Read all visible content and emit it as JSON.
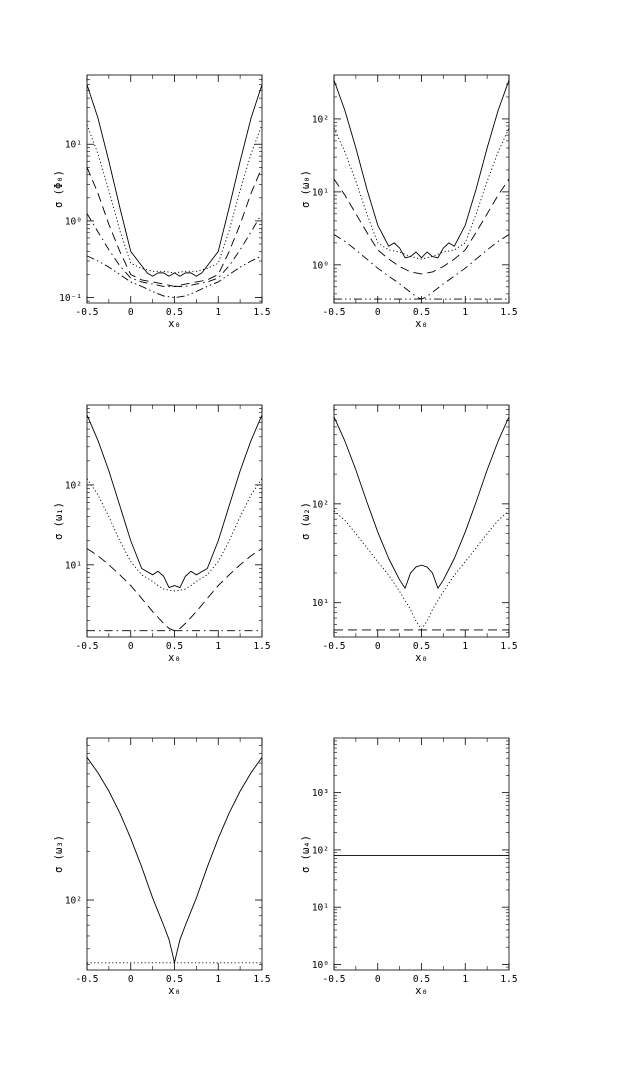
{
  "chart_data": [
    {
      "type": "line",
      "ylabel": "σ (Φ₀)",
      "xlabel": "x₀",
      "xlim": [
        -0.5,
        1.5
      ],
      "ylog": true,
      "ylim": [
        0.085,
        80
      ],
      "xticks": [
        "-0.5",
        "0",
        "0.5",
        "1",
        "1.5"
      ],
      "yticks": [
        {
          "value": 0.1,
          "label": "10⁻¹"
        },
        {
          "value": 1,
          "label": "10⁰"
        },
        {
          "value": 10,
          "label": "10¹"
        }
      ],
      "series": [
        {
          "style": "solid",
          "x": [
            -0.5,
            -0.375,
            -0.25,
            -0.125,
            0,
            0.125,
            0.1875,
            0.25,
            0.3125,
            0.375,
            0.4375,
            0.5,
            0.5625,
            0.625,
            0.6875,
            0.75,
            0.8125,
            0.875,
            1,
            1.125,
            1.25,
            1.375,
            1.5
          ],
          "y": [
            60,
            22,
            6,
            1.5,
            0.4,
            0.26,
            0.21,
            0.19,
            0.21,
            0.21,
            0.19,
            0.21,
            0.19,
            0.21,
            0.21,
            0.19,
            0.21,
            0.26,
            0.4,
            1.5,
            6,
            22,
            60
          ]
        },
        {
          "style": "dotted",
          "x": [
            -0.5,
            -0.375,
            -0.25,
            -0.125,
            0,
            0.125,
            0.25,
            0.375,
            0.5,
            0.625,
            0.75,
            0.875,
            1,
            1.125,
            1.25,
            1.375,
            1.5
          ],
          "y": [
            18,
            7.5,
            2.5,
            0.75,
            0.28,
            0.24,
            0.22,
            0.22,
            0.21,
            0.22,
            0.22,
            0.24,
            0.28,
            0.75,
            2.5,
            7.5,
            18
          ]
        },
        {
          "style": "dashed",
          "x": [
            -0.5,
            -0.375,
            -0.25,
            -0.125,
            0,
            0.125,
            0.25,
            0.375,
            0.5,
            0.625,
            0.75,
            0.875,
            1,
            1.125,
            1.25,
            1.375,
            1.5
          ],
          "y": [
            5,
            2.3,
            0.9,
            0.4,
            0.2,
            0.17,
            0.16,
            0.15,
            0.14,
            0.15,
            0.16,
            0.17,
            0.2,
            0.4,
            0.9,
            2.3,
            5
          ]
        },
        {
          "style": "dashdot",
          "x": [
            -0.5,
            -0.375,
            -0.25,
            -0.125,
            0,
            0.125,
            0.25,
            0.375,
            0.5,
            0.625,
            0.75,
            0.875,
            1,
            1.125,
            1.25,
            1.375,
            1.5
          ],
          "y": [
            1.25,
            0.72,
            0.42,
            0.26,
            0.18,
            0.16,
            0.15,
            0.14,
            0.14,
            0.14,
            0.15,
            0.16,
            0.18,
            0.26,
            0.42,
            0.72,
            1.25
          ]
        },
        {
          "style": "dashdotdot",
          "x": [
            -0.5,
            -0.375,
            -0.25,
            -0.125,
            0,
            0.125,
            0.25,
            0.375,
            0.5,
            0.625,
            0.75,
            0.875,
            1,
            1.125,
            1.25,
            1.375,
            1.5
          ],
          "y": [
            0.35,
            0.3,
            0.25,
            0.2,
            0.16,
            0.14,
            0.12,
            0.105,
            0.1,
            0.105,
            0.12,
            0.14,
            0.16,
            0.2,
            0.25,
            0.3,
            0.35
          ]
        }
      ]
    },
    {
      "type": "line",
      "ylabel": "σ (ω₀)",
      "xlabel": "x₀",
      "xlim": [
        -0.5,
        1.5
      ],
      "ylog": true,
      "ylim": [
        0.3,
        400
      ],
      "xticks": [
        "-0.5",
        "0",
        "0.5",
        "1",
        "1.5"
      ],
      "yticks": [
        {
          "value": 1,
          "label": "10⁰"
        },
        {
          "value": 10,
          "label": "10¹"
        },
        {
          "value": 100,
          "label": "10²"
        }
      ],
      "series": [
        {
          "style": "solid",
          "x": [
            -0.5,
            -0.375,
            -0.25,
            -0.125,
            0,
            0.125,
            0.1875,
            0.25,
            0.3125,
            0.375,
            0.4375,
            0.5,
            0.5625,
            0.625,
            0.6875,
            0.75,
            0.8125,
            0.875,
            1,
            1.125,
            1.25,
            1.375,
            1.5
          ],
          "y": [
            340,
            130,
            40,
            11,
            3.5,
            1.8,
            2.0,
            1.7,
            1.25,
            1.3,
            1.5,
            1.25,
            1.5,
            1.3,
            1.25,
            1.7,
            2.0,
            1.8,
            3.5,
            11,
            40,
            130,
            340
          ]
        },
        {
          "style": "dotted",
          "x": [
            -0.5,
            -0.375,
            -0.25,
            -0.125,
            0,
            0.125,
            0.25,
            0.375,
            0.5,
            0.625,
            0.75,
            0.875,
            1,
            1.125,
            1.25,
            1.375,
            1.5
          ],
          "y": [
            75,
            35,
            14,
            5,
            2.0,
            1.6,
            1.5,
            1.3,
            1.2,
            1.3,
            1.5,
            1.6,
            2.0,
            5,
            14,
            35,
            75
          ]
        },
        {
          "style": "dashed",
          "x": [
            -0.5,
            -0.375,
            -0.25,
            -0.125,
            0,
            0.125,
            0.25,
            0.375,
            0.5,
            0.625,
            0.75,
            0.875,
            1,
            1.125,
            1.25,
            1.375,
            1.5
          ],
          "y": [
            15,
            9,
            5,
            2.8,
            1.6,
            1.2,
            0.95,
            0.8,
            0.75,
            0.8,
            0.95,
            1.2,
            1.6,
            2.8,
            5,
            9,
            15
          ]
        },
        {
          "style": "dashdot",
          "x": [
            -0.5,
            -0.375,
            -0.25,
            -0.125,
            0,
            0.125,
            0.25,
            0.375,
            0.45,
            0.5,
            0.55,
            0.625,
            0.75,
            0.875,
            1,
            1.125,
            1.25,
            1.375,
            1.5
          ],
          "y": [
            2.6,
            2.1,
            1.6,
            1.2,
            0.9,
            0.7,
            0.55,
            0.42,
            0.36,
            0.34,
            0.36,
            0.42,
            0.55,
            0.7,
            0.9,
            1.2,
            1.6,
            2.1,
            2.6
          ]
        },
        {
          "style": "dashdotdot",
          "x": [
            -0.5,
            1.5
          ],
          "y": [
            0.34,
            0.34
          ]
        }
      ]
    },
    {
      "type": "line",
      "ylabel": "σ (ω₁)",
      "xlabel": "x₀",
      "xlim": [
        -0.5,
        1.5
      ],
      "ylog": true,
      "ylim": [
        1.25,
        1000
      ],
      "xticks": [
        "-0.5",
        "0",
        "0.5",
        "1",
        "1.5"
      ],
      "yticks": [
        {
          "value": 10,
          "label": "10¹"
        },
        {
          "value": 100,
          "label": "10²"
        }
      ],
      "series": [
        {
          "style": "solid",
          "x": [
            -0.5,
            -0.375,
            -0.25,
            -0.125,
            0,
            0.125,
            0.25,
            0.3125,
            0.375,
            0.4375,
            0.5,
            0.5625,
            0.625,
            0.6875,
            0.75,
            0.875,
            1,
            1.125,
            1.25,
            1.375,
            1.5
          ],
          "y": [
            750,
            360,
            150,
            55,
            20,
            9,
            7.5,
            8.3,
            7.2,
            5.2,
            5.5,
            5.2,
            7.2,
            8.3,
            7.5,
            9,
            20,
            55,
            150,
            360,
            750
          ]
        },
        {
          "style": "dotted",
          "x": [
            -0.5,
            -0.375,
            -0.25,
            -0.125,
            0,
            0.125,
            0.25,
            0.3125,
            0.375,
            0.4375,
            0.5,
            0.5625,
            0.625,
            0.6875,
            0.75,
            0.875,
            1,
            1.125,
            1.25,
            1.375,
            1.5
          ],
          "y": [
            120,
            75,
            40,
            20,
            11,
            7.5,
            6.2,
            5.5,
            5.0,
            4.8,
            4.7,
            4.8,
            5.0,
            5.5,
            6.2,
            7.5,
            11,
            20,
            40,
            75,
            120
          ]
        },
        {
          "style": "dashed",
          "x": [
            -0.5,
            -0.375,
            -0.25,
            -0.125,
            0,
            0.125,
            0.25,
            0.375,
            0.4375,
            0.5,
            0.5625,
            0.625,
            0.75,
            0.875,
            1,
            1.125,
            1.25,
            1.375,
            1.5
          ],
          "y": [
            16,
            13,
            10,
            7.5,
            5.5,
            3.8,
            2.6,
            1.85,
            1.6,
            1.5,
            1.6,
            1.85,
            2.6,
            3.8,
            5.5,
            7.5,
            10,
            13,
            16
          ]
        },
        {
          "style": "dashdot",
          "x": [
            -0.5,
            1.5
          ],
          "y": [
            1.5,
            1.5
          ]
        }
      ]
    },
    {
      "type": "line",
      "ylabel": "σ (ω₂)",
      "xlabel": "x₀",
      "xlim": [
        -0.5,
        1.5
      ],
      "ylog": true,
      "ylim": [
        4.5,
        1000
      ],
      "xticks": [
        "-0.5",
        "0",
        "0.5",
        "1",
        "1.5"
      ],
      "yticks": [
        {
          "value": 10,
          "label": "10¹"
        },
        {
          "value": 100,
          "label": "10²"
        }
      ],
      "series": [
        {
          "style": "solid",
          "x": [
            -0.5,
            -0.375,
            -0.25,
            -0.125,
            0,
            0.125,
            0.25,
            0.3125,
            0.375,
            0.4375,
            0.5,
            0.5625,
            0.625,
            0.6875,
            0.75,
            0.875,
            1,
            1.125,
            1.25,
            1.375,
            1.5
          ],
          "y": [
            760,
            430,
            220,
            105,
            52,
            28,
            17,
            14,
            20,
            23,
            24,
            23,
            20,
            14,
            17,
            28,
            52,
            105,
            220,
            430,
            760
          ]
        },
        {
          "style": "dotted",
          "x": [
            -0.5,
            -0.375,
            -0.25,
            -0.125,
            0,
            0.125,
            0.25,
            0.375,
            0.4375,
            0.5,
            0.5625,
            0.625,
            0.75,
            0.875,
            1,
            1.125,
            1.25,
            1.375,
            1.5
          ],
          "y": [
            85,
            68,
            50,
            36,
            26,
            19,
            13,
            8.5,
            6.5,
            5.4,
            6.5,
            8.5,
            13,
            19,
            26,
            36,
            50,
            68,
            85
          ]
        },
        {
          "style": "dashed",
          "x": [
            -0.5,
            1.5
          ],
          "y": [
            5.3,
            5.3
          ]
        }
      ]
    },
    {
      "type": "line",
      "ylabel": "σ (ω₃)",
      "xlabel": "x₀",
      "xlim": [
        -0.5,
        1.5
      ],
      "ylog": true,
      "ylim": [
        37,
        1000
      ],
      "xticks": [
        "-0.5",
        "0",
        "0.5",
        "1",
        "1.5"
      ],
      "yticks": [
        {
          "value": 100,
          "label": "10²"
        }
      ],
      "series": [
        {
          "style": "solid",
          "x": [
            -0.5,
            -0.375,
            -0.25,
            -0.125,
            0,
            0.125,
            0.25,
            0.375,
            0.4375,
            0.475,
            0.5,
            0.525,
            0.5625,
            0.625,
            0.75,
            0.875,
            1,
            1.125,
            1.25,
            1.375,
            1.5
          ],
          "y": [
            760,
            610,
            470,
            345,
            240,
            160,
            103,
            70,
            57,
            47,
            41,
            47,
            57,
            70,
            103,
            160,
            240,
            345,
            470,
            610,
            760
          ]
        },
        {
          "style": "dotted",
          "x": [
            -0.5,
            1.5
          ],
          "y": [
            41,
            41
          ]
        }
      ]
    },
    {
      "type": "line",
      "ylabel": "σ (ω₄)",
      "xlabel": "x₀",
      "xlim": [
        -0.5,
        1.5
      ],
      "ylog": true,
      "ylim": [
        0.8,
        9000
      ],
      "xticks": [
        "-0.5",
        "0",
        "0.5",
        "1",
        "1.5"
      ],
      "yticks": [
        {
          "value": 1,
          "label": "10⁰"
        },
        {
          "value": 10,
          "label": "10¹"
        },
        {
          "value": 100,
          "label": "10²"
        },
        {
          "value": 1000,
          "label": "10³"
        }
      ],
      "series": [
        {
          "style": "solid",
          "x": [
            -0.5,
            1.5
          ],
          "y": [
            80,
            80
          ]
        }
      ]
    }
  ]
}
